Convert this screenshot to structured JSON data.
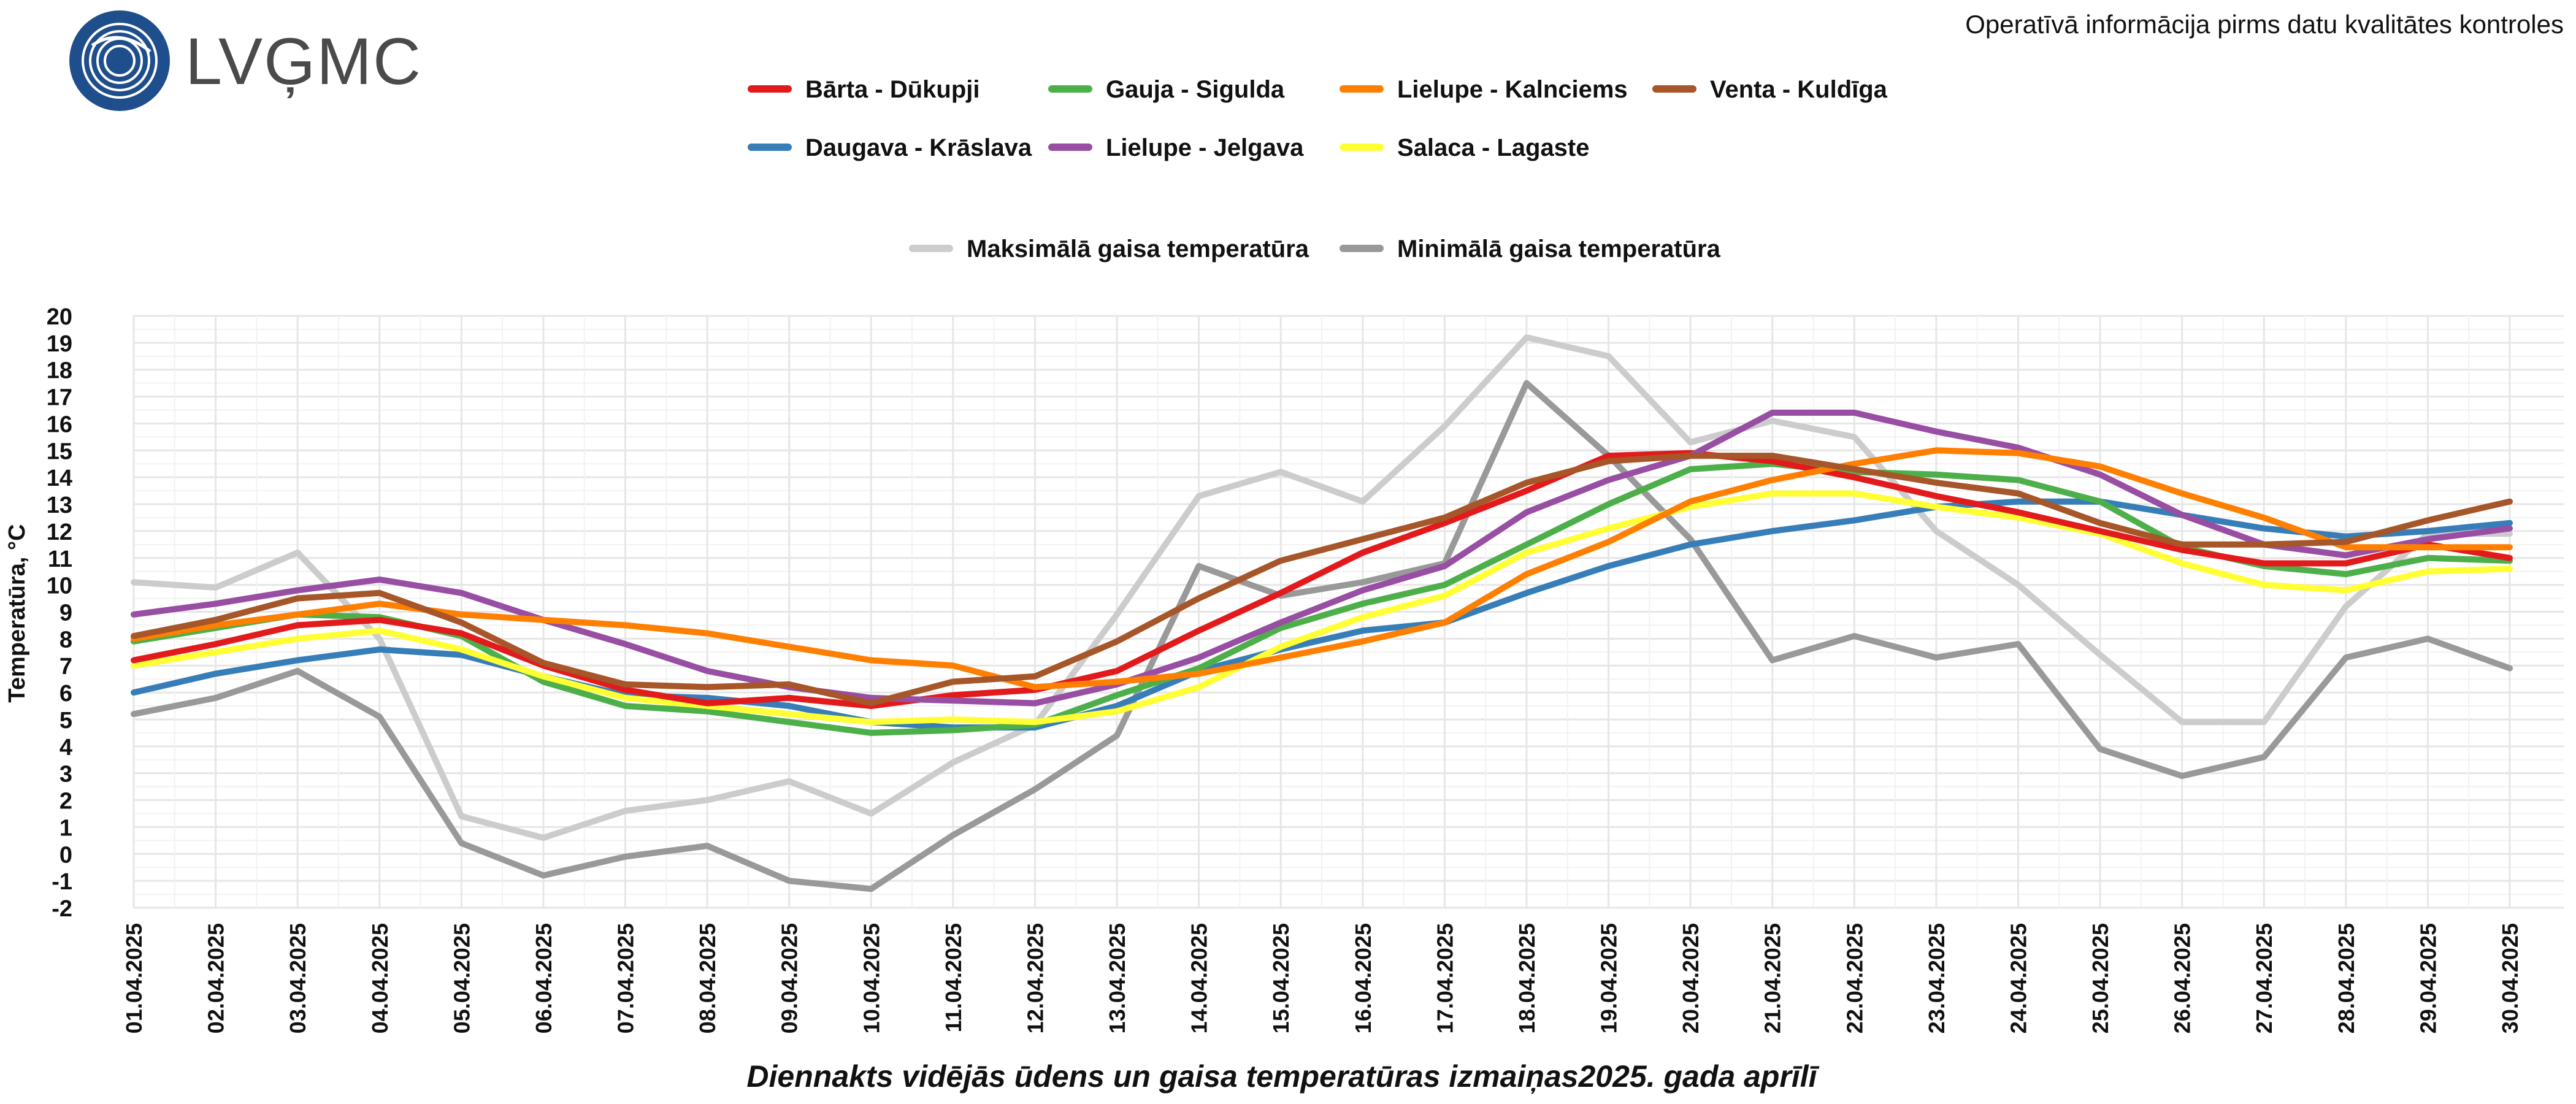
{
  "header": {
    "logo_text": "LVĢMC",
    "note": "Operatīvā informācija pirms datu kvalitātes kontroles"
  },
  "colors": {
    "Bārta - Dūkupji": "#e31a1c",
    "Daugava - Krāslava": "#377eb8",
    "Gauja - Sigulda": "#4daf4a",
    "Lielupe - Jelgava": "#984ea3",
    "Lielupe - Kalnciems": "#ff7f00",
    "Salaca - Lagaste": "#ffff33",
    "Venta - Kuldīga": "#a65628",
    "Maksimālā gaisa temperatūra": "#cccccc",
    "Minimālā gaisa temperatūra": "#999999",
    "logo_blue": "#1f4e8c"
  },
  "chart_data": {
    "type": "line",
    "title": "Diennakts vidējās ūdens un gaisa temperatūras izmaiņas2025. gada aprīlī",
    "xlabel": "",
    "ylabel": "Temperatūra, °C",
    "ylim": [
      -2,
      20
    ],
    "yticks": [
      "-2",
      "-1",
      "0",
      "1",
      "2",
      "3",
      "4",
      "5",
      "6",
      "7",
      "8",
      "9",
      "10",
      "11",
      "12",
      "13",
      "14",
      "15",
      "16",
      "17",
      "18",
      "19",
      "20"
    ],
    "categories": [
      "01.04.2025",
      "02.04.2025",
      "03.04.2025",
      "04.04.2025",
      "05.04.2025",
      "06.04.2025",
      "07.04.2025",
      "08.04.2025",
      "09.04.2025",
      "10.04.2025",
      "11.04.2025",
      "12.04.2025",
      "13.04.2025",
      "14.04.2025",
      "15.04.2025",
      "16.04.2025",
      "17.04.2025",
      "18.04.2025",
      "19.04.2025",
      "20.04.2025",
      "21.04.2025",
      "22.04.2025",
      "23.04.2025",
      "24.04.2025",
      "25.04.2025",
      "26.04.2025",
      "27.04.2025",
      "28.04.2025",
      "29.04.2025",
      "30.04.2025"
    ],
    "legend_rows": [
      [
        "Bārta - Dūkupji",
        "Gauja - Sigulda",
        "Lielupe - Kalnciems",
        "Venta - Kuldīga"
      ],
      [
        "Daugava - Krāslava",
        "Lielupe - Jelgava",
        "Salaca - Lagaste"
      ],
      [
        "Maksimālā gaisa temperatūra",
        "Minimālā gaisa temperatūra"
      ]
    ],
    "series": [
      {
        "name": "Maksimālā gaisa temperatūra",
        "values": [
          10.1,
          9.9,
          11.2,
          8.0,
          1.4,
          0.6,
          1.6,
          2.0,
          2.7,
          1.5,
          3.4,
          4.8,
          8.9,
          13.3,
          14.2,
          13.1,
          15.9,
          19.2,
          18.5,
          15.3,
          16.1,
          15.5,
          12.0,
          10.0,
          7.4,
          4.9,
          4.9,
          9.2,
          11.9,
          11.9
        ]
      },
      {
        "name": "Minimālā gaisa temperatūra",
        "values": [
          5.2,
          5.8,
          6.8,
          5.1,
          0.4,
          -0.8,
          -0.1,
          0.3,
          -1.0,
          -1.3,
          0.7,
          2.4,
          4.4,
          10.7,
          9.6,
          10.1,
          10.8,
          17.5,
          14.8,
          11.7,
          7.2,
          8.1,
          7.3,
          7.8,
          3.9,
          2.9,
          3.6,
          7.3,
          8.0,
          6.9
        ]
      },
      {
        "name": "Daugava - Krāslava",
        "values": [
          6.0,
          6.7,
          7.2,
          7.6,
          7.4,
          6.6,
          5.9,
          5.8,
          5.5,
          4.9,
          4.7,
          4.7,
          5.5,
          6.8,
          7.6,
          8.3,
          8.6,
          9.7,
          10.7,
          11.5,
          12.0,
          12.4,
          12.9,
          13.1,
          13.1,
          12.6,
          12.1,
          11.8,
          12.0,
          12.3
        ]
      },
      {
        "name": "Gauja - Sigulda",
        "values": [
          7.9,
          8.4,
          8.9,
          8.8,
          8.1,
          6.4,
          5.5,
          5.3,
          4.9,
          4.5,
          4.6,
          4.8,
          5.9,
          6.9,
          8.4,
          9.3,
          10.0,
          11.5,
          13.0,
          14.3,
          14.5,
          14.2,
          14.1,
          13.9,
          13.1,
          11.4,
          10.7,
          10.4,
          11.0,
          10.9
        ]
      },
      {
        "name": "Salaca - Lagaste",
        "values": [
          7.0,
          7.5,
          8.0,
          8.3,
          7.6,
          6.6,
          5.8,
          5.5,
          5.2,
          4.9,
          5.0,
          4.9,
          5.3,
          6.2,
          7.7,
          8.8,
          9.6,
          11.2,
          12.1,
          12.9,
          13.4,
          13.4,
          12.9,
          12.5,
          11.9,
          10.8,
          10.0,
          9.8,
          10.5,
          10.6
        ]
      },
      {
        "name": "Bārta - Dūkupji",
        "values": [
          7.2,
          7.8,
          8.5,
          8.7,
          8.2,
          7.0,
          6.1,
          5.6,
          5.8,
          5.5,
          5.9,
          6.1,
          6.8,
          8.3,
          9.7,
          11.2,
          12.3,
          13.5,
          14.8,
          14.9,
          14.6,
          14.0,
          13.3,
          12.7,
          12.0,
          11.3,
          10.8,
          10.8,
          11.5,
          11.0
        ]
      },
      {
        "name": "Lielupe - Jelgava",
        "values": [
          8.9,
          9.3,
          9.8,
          10.2,
          9.7,
          8.7,
          7.8,
          6.8,
          6.2,
          5.8,
          5.7,
          5.6,
          6.3,
          7.3,
          8.6,
          9.8,
          10.7,
          12.7,
          13.9,
          14.8,
          16.4,
          16.4,
          15.7,
          15.1,
          14.1,
          12.6,
          11.5,
          11.1,
          11.7,
          12.1
        ]
      },
      {
        "name": "Lielupe - Kalnciems",
        "values": [
          8.0,
          8.5,
          8.9,
          9.3,
          8.9,
          8.7,
          8.5,
          8.2,
          7.7,
          7.2,
          7.0,
          6.2,
          6.4,
          6.7,
          7.3,
          7.9,
          8.6,
          10.4,
          11.6,
          13.1,
          13.9,
          14.5,
          15.0,
          14.9,
          14.4,
          13.4,
          12.5,
          11.4,
          11.4,
          11.4
        ]
      },
      {
        "name": "Venta - Kuldīga",
        "values": [
          8.1,
          8.7,
          9.5,
          9.7,
          8.6,
          7.1,
          6.3,
          6.2,
          6.3,
          5.6,
          6.4,
          6.6,
          7.9,
          9.5,
          10.9,
          11.7,
          12.5,
          13.8,
          14.6,
          14.8,
          14.8,
          14.3,
          13.8,
          13.4,
          12.3,
          11.5,
          11.5,
          11.6,
          12.4,
          13.1
        ]
      }
    ]
  }
}
